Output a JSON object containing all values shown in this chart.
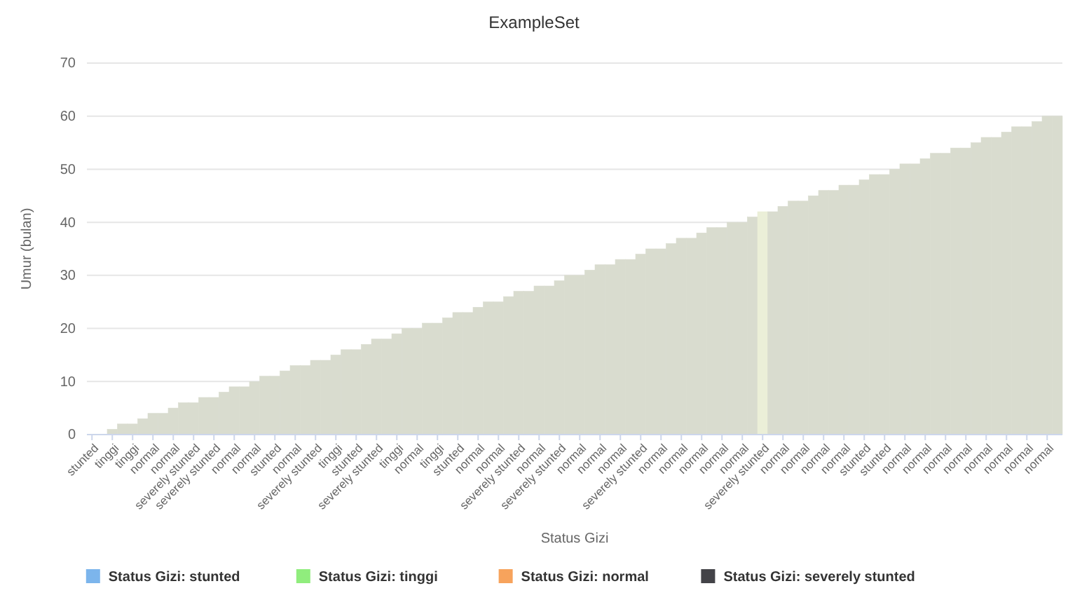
{
  "chart_data": {
    "type": "bar",
    "title": "ExampleSet",
    "xlabel": "Status Gizi",
    "ylabel": "Umur (bulan)",
    "categories": [
      "stunted",
      null,
      "tinggi",
      null,
      "tinggi",
      null,
      "normal",
      null,
      "normal",
      null,
      "severely stunted",
      null,
      "severely stunted",
      null,
      "normal",
      null,
      "normal",
      null,
      "stunted",
      null,
      "normal",
      null,
      "severely stunted",
      null,
      "tinggi",
      null,
      "stunted",
      null,
      "severely stunted",
      null,
      "tinggi",
      null,
      "normal",
      null,
      "tinggi",
      null,
      "stunted",
      null,
      "normal",
      null,
      "normal",
      null,
      "severely stunted",
      null,
      "normal",
      null,
      "severely stunted",
      null,
      "normal",
      null,
      "normal",
      null,
      "normal",
      null,
      "severely stunted",
      null,
      "normal",
      null,
      "normal",
      null,
      "normal",
      null,
      "normal",
      null,
      "normal",
      null,
      "severely stunted",
      null,
      "normal",
      null,
      "normal",
      null,
      "normal",
      null,
      "normal",
      null,
      "stunted",
      null,
      "stunted",
      null,
      "normal",
      null,
      "normal",
      null,
      "normal",
      null,
      "normal",
      null,
      "normal",
      null,
      "normal",
      null,
      "normal",
      null,
      "normal",
      null
    ],
    "series": [
      {
        "colors": [
          "#d9dccf",
          "#d9dccf",
          "#d9dccf",
          "#d9dccf",
          "#d9dccf",
          "#d9dccf",
          "#d9dccf",
          "#d9dccf",
          "#d9dccf",
          "#d9dccf",
          "#d9dccf",
          "#d9dccf",
          "#d9dccf",
          "#d9dccf",
          "#d9dccf",
          "#d9dccf",
          "#d9dccf",
          "#d9dccf",
          "#d9dccf",
          "#d9dccf",
          "#d9dccf",
          "#d9dccf",
          "#d9dccf",
          "#d9dccf",
          "#d9dccf",
          "#d9dccf",
          "#d9dccf",
          "#d9dccf",
          "#d9dccf",
          "#d9dccf",
          "#d9dccf",
          "#d9dccf",
          "#d9dccf",
          "#d9dccf",
          "#d9dccf",
          "#d9dccf",
          "#d9dccf",
          "#d9dccf",
          "#d9dccf",
          "#d9dccf",
          "#d9dccf",
          "#d9dccf",
          "#d9dccf",
          "#d9dccf",
          "#d9dccf",
          "#d9dccf",
          "#d9dccf",
          "#d9dccf",
          "#d9dccf",
          "#d9dccf",
          "#d9dccf",
          "#d9dccf",
          "#d9dccf",
          "#d9dccf",
          "#d9dccf",
          "#d9dccf",
          "#d9dccf",
          "#d9dccf",
          "#d9dccf",
          "#d9dccf",
          "#d9dccf",
          "#d9dccf",
          "#d9dccf",
          "#d9dccf",
          "#d9dccf",
          "#d9dccf",
          "#ebefd8",
          "#d9dccf",
          "#d9dccf",
          "#d9dccf",
          "#d9dccf",
          "#d9dccf",
          "#d9dccf",
          "#d9dccf",
          "#d9dccf",
          "#d9dccf",
          "#d9dccf",
          "#d9dccf",
          "#d9dccf",
          "#d9dccf",
          "#d9dccf",
          "#d9dccf",
          "#d9dccf",
          "#d9dccf",
          "#d9dccf",
          "#d9dccf",
          "#d9dccf",
          "#d9dccf",
          "#d9dccf",
          "#d9dccf",
          "#d9dccf",
          "#d9dccf",
          "#d9dccf",
          "#d9dccf",
          "#d9dccf",
          "#d9dccf"
        ],
        "values": [
          0,
          0,
          1,
          2,
          2,
          3,
          4,
          4,
          5,
          6,
          6,
          7,
          7,
          8,
          9,
          9,
          10,
          11,
          11,
          12,
          13,
          13,
          14,
          14,
          15,
          16,
          16,
          17,
          18,
          18,
          19,
          20,
          20,
          21,
          21,
          22,
          23,
          23,
          24,
          25,
          25,
          26,
          27,
          27,
          28,
          28,
          29,
          30,
          30,
          31,
          32,
          32,
          33,
          33,
          34,
          35,
          35,
          36,
          37,
          37,
          38,
          39,
          39,
          40,
          40,
          41,
          42,
          42,
          43,
          44,
          44,
          45,
          46,
          46,
          47,
          47,
          48,
          49,
          49,
          50,
          51,
          51,
          52,
          53,
          53,
          54,
          54,
          55,
          56,
          56,
          57,
          58,
          58,
          59,
          60,
          60
        ]
      },
      {
        "name": "Status Gizi: stunted",
        "color": "#7cb5ec",
        "values": [
          null,
          null,
          null,
          null,
          null,
          null,
          null,
          null,
          null,
          null,
          null,
          null,
          null,
          null,
          null,
          null,
          null,
          null,
          null,
          null,
          null,
          null,
          null,
          null,
          null,
          null,
          null,
          null,
          null,
          null,
          null,
          null,
          null,
          null,
          null,
          null,
          null,
          null,
          null,
          null,
          null,
          null,
          null,
          null,
          null,
          null,
          null,
          null,
          null,
          null,
          null,
          null,
          null,
          null,
          null,
          null,
          null,
          null,
          null,
          null,
          null,
          null,
          null,
          null,
          null,
          null,
          null,
          null,
          null,
          null,
          null,
          null,
          null,
          null,
          null,
          null,
          null,
          null,
          null,
          null,
          null,
          null,
          null,
          null,
          null,
          null,
          null,
          null,
          null,
          null,
          null,
          null,
          null,
          null,
          null,
          null
        ]
      },
      {
        "name": "Status Gizi: tinggi",
        "color": "#90ed7d",
        "values": [
          null,
          null,
          null,
          null,
          null,
          null,
          null,
          null,
          null,
          null,
          null,
          null,
          null,
          null,
          null,
          null,
          null,
          null,
          null,
          null,
          null,
          null,
          null,
          null,
          null,
          null,
          null,
          null,
          null,
          null,
          null,
          null,
          null,
          null,
          null,
          null,
          null,
          null,
          null,
          null,
          null,
          null,
          null,
          null,
          null,
          null,
          null,
          null,
          null,
          null,
          null,
          null,
          null,
          null,
          null,
          null,
          null,
          null,
          null,
          null,
          null,
          null,
          null,
          null,
          null,
          null,
          null,
          null,
          null,
          null,
          null,
          null,
          null,
          null,
          null,
          null,
          null,
          null,
          null,
          null,
          null,
          null,
          null,
          null,
          null,
          null,
          null,
          null,
          null,
          null,
          null,
          null,
          null,
          null,
          null,
          null
        ]
      },
      {
        "name": "Status Gizi: normal",
        "color": "#f7a35c",
        "values": [
          null,
          null,
          null,
          null,
          null,
          null,
          null,
          null,
          null,
          null,
          null,
          null,
          null,
          null,
          null,
          null,
          null,
          null,
          null,
          null,
          null,
          null,
          null,
          null,
          null,
          null,
          null,
          null,
          null,
          null,
          null,
          null,
          null,
          null,
          null,
          null,
          null,
          null,
          null,
          null,
          null,
          null,
          null,
          null,
          null,
          null,
          null,
          null,
          null,
          null,
          null,
          null,
          null,
          null,
          null,
          null,
          null,
          null,
          null,
          null,
          null,
          null,
          null,
          null,
          null,
          null,
          null,
          null,
          null,
          null,
          null,
          null,
          null,
          null,
          null,
          null,
          null,
          null,
          null,
          null,
          null,
          null,
          null,
          null,
          null,
          null,
          null,
          null,
          null,
          null,
          null,
          null,
          null,
          null,
          null,
          null
        ]
      },
      {
        "name": "Status Gizi: severely stunted",
        "color": "#434348",
        "values": [
          null,
          null,
          null,
          null,
          null,
          null,
          null,
          null,
          null,
          null,
          null,
          null,
          null,
          null,
          null,
          null,
          null,
          null,
          null,
          null,
          null,
          null,
          null,
          null,
          null,
          null,
          null,
          null,
          null,
          null,
          null,
          null,
          null,
          null,
          null,
          null,
          null,
          null,
          null,
          null,
          null,
          null,
          null,
          null,
          null,
          null,
          null,
          null,
          null,
          null,
          null,
          null,
          null,
          null,
          null,
          null,
          null,
          null,
          null,
          null,
          null,
          null,
          null,
          null,
          null,
          null,
          null,
          null,
          null,
          null,
          null,
          null,
          null,
          null,
          null,
          null,
          null,
          null,
          null,
          null,
          null,
          null,
          null,
          null,
          null,
          null,
          null,
          null,
          null,
          null,
          null,
          null,
          null,
          null,
          null,
          null
        ]
      }
    ],
    "ylim": [
      0,
      70
    ],
    "yticks": [
      0,
      10,
      20,
      30,
      40,
      50,
      60,
      70
    ],
    "grid": "y",
    "legend": "bottom"
  }
}
